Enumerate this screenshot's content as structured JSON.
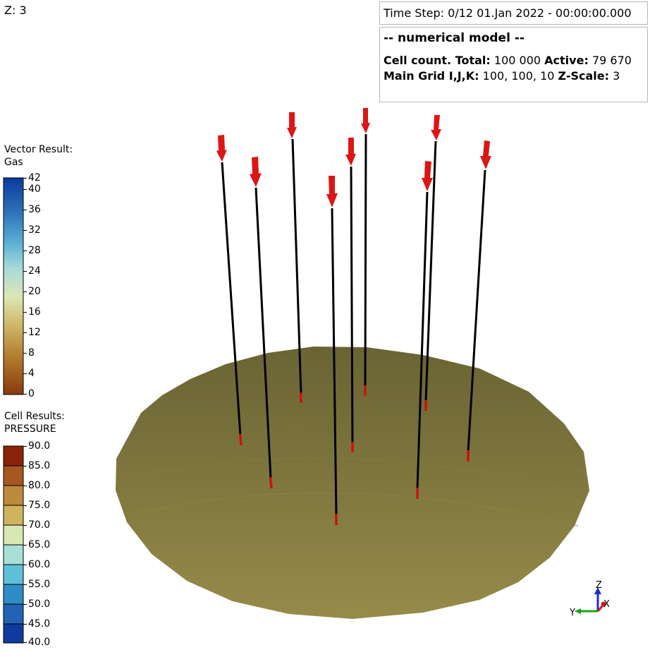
{
  "view": {
    "z_label": "Z: 3"
  },
  "info": {
    "time_step": "Time Step: 0/12 01.Jan 2022 - 00:00:00.000",
    "model_title": "-- numerical model --",
    "cell_count_label": "Cell count. Total:",
    "cell_total": "100 000",
    "active_label": "Active:",
    "cell_active": "79 670",
    "main_grid_label": "Main Grid I,J,K:",
    "main_grid_value": "100, 100, 10",
    "zscale_label": "Z-Scale:",
    "zscale_value": "3"
  },
  "legend_vector": {
    "title_line1": "Vector Result:",
    "title_line2": "Gas",
    "ticks": [
      "42",
      "40",
      "36",
      "32",
      "28",
      "24",
      "20",
      "16",
      "12",
      "8",
      "4",
      "0"
    ]
  },
  "legend_cell": {
    "title_line1": "Cell Results:",
    "title_line2": "PRESSURE",
    "ticks": [
      "90.0",
      "85.0",
      "80.0",
      "75.0",
      "70.0",
      "65.0",
      "60.0",
      "55.0",
      "50.0",
      "45.0",
      "40.0"
    ]
  },
  "axes": {
    "z": "Z",
    "y": "Y",
    "x": "X"
  },
  "colors": {
    "reservoir_top": "#6e6835",
    "reservoir_bottom": "#958a48",
    "well_line": "#000000",
    "well_perforation": "#cc1010",
    "vector_arrow": "#dd1515",
    "axis_z": "#1a2ad8",
    "axis_y": "#14a814",
    "axis_x": "#d41818"
  }
}
